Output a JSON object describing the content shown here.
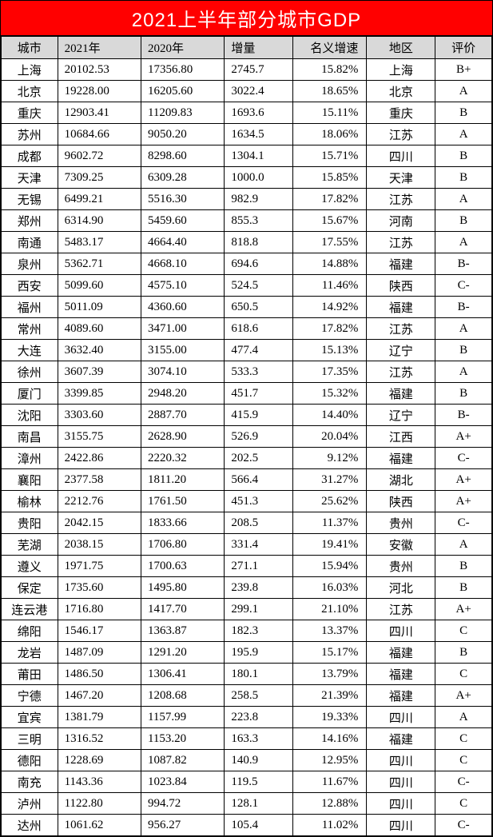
{
  "title": "2021上半年部分城市GDP",
  "title_bg": "#ff0000",
  "title_color": "#ffffff",
  "header_bg": "#d9d9d9",
  "border_color": "#000000",
  "columns": [
    "城市",
    "2021年",
    "2020年",
    "增量",
    "名义增速",
    "地区",
    "评价"
  ],
  "rows": [
    {
      "city": "上海",
      "y2021": "20102.53",
      "y2020": "17356.80",
      "inc": "2745.7",
      "rate": "15.82%",
      "region": "上海",
      "grade": "B+"
    },
    {
      "city": "北京",
      "y2021": "19228.00",
      "y2020": "16205.60",
      "inc": "3022.4",
      "rate": "18.65%",
      "region": "北京",
      "grade": "A"
    },
    {
      "city": "重庆",
      "y2021": "12903.41",
      "y2020": "11209.83",
      "inc": "1693.6",
      "rate": "15.11%",
      "region": "重庆",
      "grade": "B"
    },
    {
      "city": "苏州",
      "y2021": "10684.66",
      "y2020": "9050.20",
      "inc": "1634.5",
      "rate": "18.06%",
      "region": "江苏",
      "grade": "A"
    },
    {
      "city": "成都",
      "y2021": "9602.72",
      "y2020": "8298.60",
      "inc": "1304.1",
      "rate": "15.71%",
      "region": "四川",
      "grade": "B"
    },
    {
      "city": "天津",
      "y2021": "7309.25",
      "y2020": "6309.28",
      "inc": "1000.0",
      "rate": "15.85%",
      "region": "天津",
      "grade": "B"
    },
    {
      "city": "无锡",
      "y2021": "6499.21",
      "y2020": "5516.30",
      "inc": "982.9",
      "rate": "17.82%",
      "region": "江苏",
      "grade": "A"
    },
    {
      "city": "郑州",
      "y2021": "6314.90",
      "y2020": "5459.60",
      "inc": "855.3",
      "rate": "15.67%",
      "region": "河南",
      "grade": "B"
    },
    {
      "city": "南通",
      "y2021": "5483.17",
      "y2020": "4664.40",
      "inc": "818.8",
      "rate": "17.55%",
      "region": "江苏",
      "grade": "A"
    },
    {
      "city": "泉州",
      "y2021": "5362.71",
      "y2020": "4668.10",
      "inc": "694.6",
      "rate": "14.88%",
      "region": "福建",
      "grade": "B-"
    },
    {
      "city": "西安",
      "y2021": "5099.60",
      "y2020": "4575.10",
      "inc": "524.5",
      "rate": "11.46%",
      "region": "陕西",
      "grade": "C-"
    },
    {
      "city": "福州",
      "y2021": "5011.09",
      "y2020": "4360.60",
      "inc": "650.5",
      "rate": "14.92%",
      "region": "福建",
      "grade": "B-"
    },
    {
      "city": "常州",
      "y2021": "4089.60",
      "y2020": "3471.00",
      "inc": "618.6",
      "rate": "17.82%",
      "region": "江苏",
      "grade": "A"
    },
    {
      "city": "大连",
      "y2021": "3632.40",
      "y2020": "3155.00",
      "inc": "477.4",
      "rate": "15.13%",
      "region": "辽宁",
      "grade": "B"
    },
    {
      "city": "徐州",
      "y2021": "3607.39",
      "y2020": "3074.10",
      "inc": "533.3",
      "rate": "17.35%",
      "region": "江苏",
      "grade": "A"
    },
    {
      "city": "厦门",
      "y2021": "3399.85",
      "y2020": "2948.20",
      "inc": "451.7",
      "rate": "15.32%",
      "region": "福建",
      "grade": "B"
    },
    {
      "city": "沈阳",
      "y2021": "3303.60",
      "y2020": "2887.70",
      "inc": "415.9",
      "rate": "14.40%",
      "region": "辽宁",
      "grade": "B-"
    },
    {
      "city": "南昌",
      "y2021": "3155.75",
      "y2020": "2628.90",
      "inc": "526.9",
      "rate": "20.04%",
      "region": "江西",
      "grade": "A+"
    },
    {
      "city": "漳州",
      "y2021": "2422.86",
      "y2020": "2220.32",
      "inc": "202.5",
      "rate": "9.12%",
      "region": "福建",
      "grade": "C-"
    },
    {
      "city": "襄阳",
      "y2021": "2377.58",
      "y2020": "1811.20",
      "inc": "566.4",
      "rate": "31.27%",
      "region": "湖北",
      "grade": "A+"
    },
    {
      "city": "榆林",
      "y2021": "2212.76",
      "y2020": "1761.50",
      "inc": "451.3",
      "rate": "25.62%",
      "region": "陕西",
      "grade": "A+"
    },
    {
      "city": "贵阳",
      "y2021": "2042.15",
      "y2020": "1833.66",
      "inc": "208.5",
      "rate": "11.37%",
      "region": "贵州",
      "grade": "C-"
    },
    {
      "city": "芜湖",
      "y2021": "2038.15",
      "y2020": "1706.80",
      "inc": "331.4",
      "rate": "19.41%",
      "region": "安徽",
      "grade": "A"
    },
    {
      "city": "遵义",
      "y2021": "1971.75",
      "y2020": "1700.63",
      "inc": "271.1",
      "rate": "15.94%",
      "region": "贵州",
      "grade": "B"
    },
    {
      "city": "保定",
      "y2021": "1735.60",
      "y2020": "1495.80",
      "inc": "239.8",
      "rate": "16.03%",
      "region": "河北",
      "grade": "B"
    },
    {
      "city": "连云港",
      "y2021": "1716.80",
      "y2020": "1417.70",
      "inc": "299.1",
      "rate": "21.10%",
      "region": "江苏",
      "grade": "A+"
    },
    {
      "city": "绵阳",
      "y2021": "1546.17",
      "y2020": "1363.87",
      "inc": "182.3",
      "rate": "13.37%",
      "region": "四川",
      "grade": "C"
    },
    {
      "city": "龙岩",
      "y2021": "1487.09",
      "y2020": "1291.20",
      "inc": "195.9",
      "rate": "15.17%",
      "region": "福建",
      "grade": "B"
    },
    {
      "city": "莆田",
      "y2021": "1486.50",
      "y2020": "1306.41",
      "inc": "180.1",
      "rate": "13.79%",
      "region": "福建",
      "grade": "C"
    },
    {
      "city": "宁德",
      "y2021": "1467.20",
      "y2020": "1208.68",
      "inc": "258.5",
      "rate": "21.39%",
      "region": "福建",
      "grade": "A+"
    },
    {
      "city": "宜宾",
      "y2021": "1381.79",
      "y2020": "1157.99",
      "inc": "223.8",
      "rate": "19.33%",
      "region": "四川",
      "grade": "A"
    },
    {
      "city": "三明",
      "y2021": "1316.52",
      "y2020": "1153.20",
      "inc": "163.3",
      "rate": "14.16%",
      "region": "福建",
      "grade": "C"
    },
    {
      "city": "德阳",
      "y2021": "1228.69",
      "y2020": "1087.82",
      "inc": "140.9",
      "rate": "12.95%",
      "region": "四川",
      "grade": "C"
    },
    {
      "city": "南充",
      "y2021": "1143.36",
      "y2020": "1023.84",
      "inc": "119.5",
      "rate": "11.67%",
      "region": "四川",
      "grade": "C-"
    },
    {
      "city": "泸州",
      "y2021": "1122.80",
      "y2020": "994.72",
      "inc": "128.1",
      "rate": "12.88%",
      "region": "四川",
      "grade": "C"
    },
    {
      "city": "达州",
      "y2021": "1061.62",
      "y2020": "956.27",
      "inc": "105.4",
      "rate": "11.02%",
      "region": "四川",
      "grade": "C-"
    }
  ]
}
